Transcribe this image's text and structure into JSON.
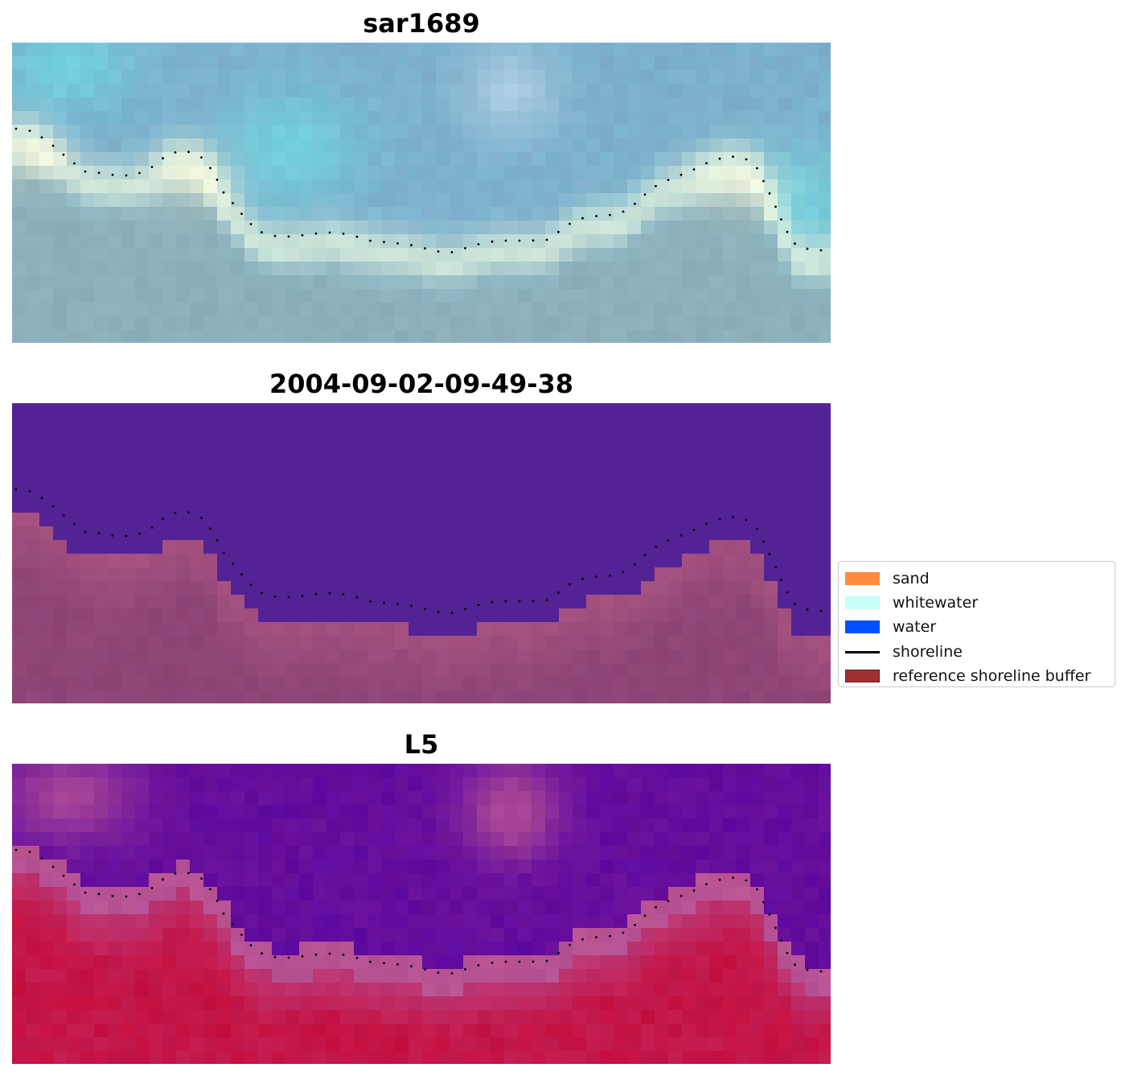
{
  "panels": [
    {
      "id": "rgb",
      "title": "sar1689"
    },
    {
      "id": "classified",
      "title": "2004-09-02-09-49-38"
    },
    {
      "id": "index",
      "title": "L5"
    }
  ],
  "legend": {
    "items": [
      {
        "label": "sand",
        "color": "#ff8c3c",
        "kind": "patch"
      },
      {
        "label": "whitewater",
        "color": "#c8fff7",
        "kind": "patch"
      },
      {
        "label": "water",
        "color": "#0050ff",
        "kind": "patch"
      },
      {
        "label": "shoreline",
        "color": "#000000",
        "kind": "line"
      },
      {
        "label": "reference shoreline buffer",
        "color": "#a03030",
        "kind": "patch"
      }
    ]
  },
  "colors": {
    "rgb_water": "#7fa6c7",
    "rgb_whitewater": "#e8f6dc",
    "rgb_cyan": "#72d3de",
    "rgb_sand": "#8fb0b8",
    "class_water": "#532396",
    "class_land": "#8c4576",
    "class_land_light": "#a85280",
    "index_low": "#5f0aa0",
    "index_mid": "#b55095",
    "index_high": "#c51040",
    "shoreline": "#000000"
  }
}
